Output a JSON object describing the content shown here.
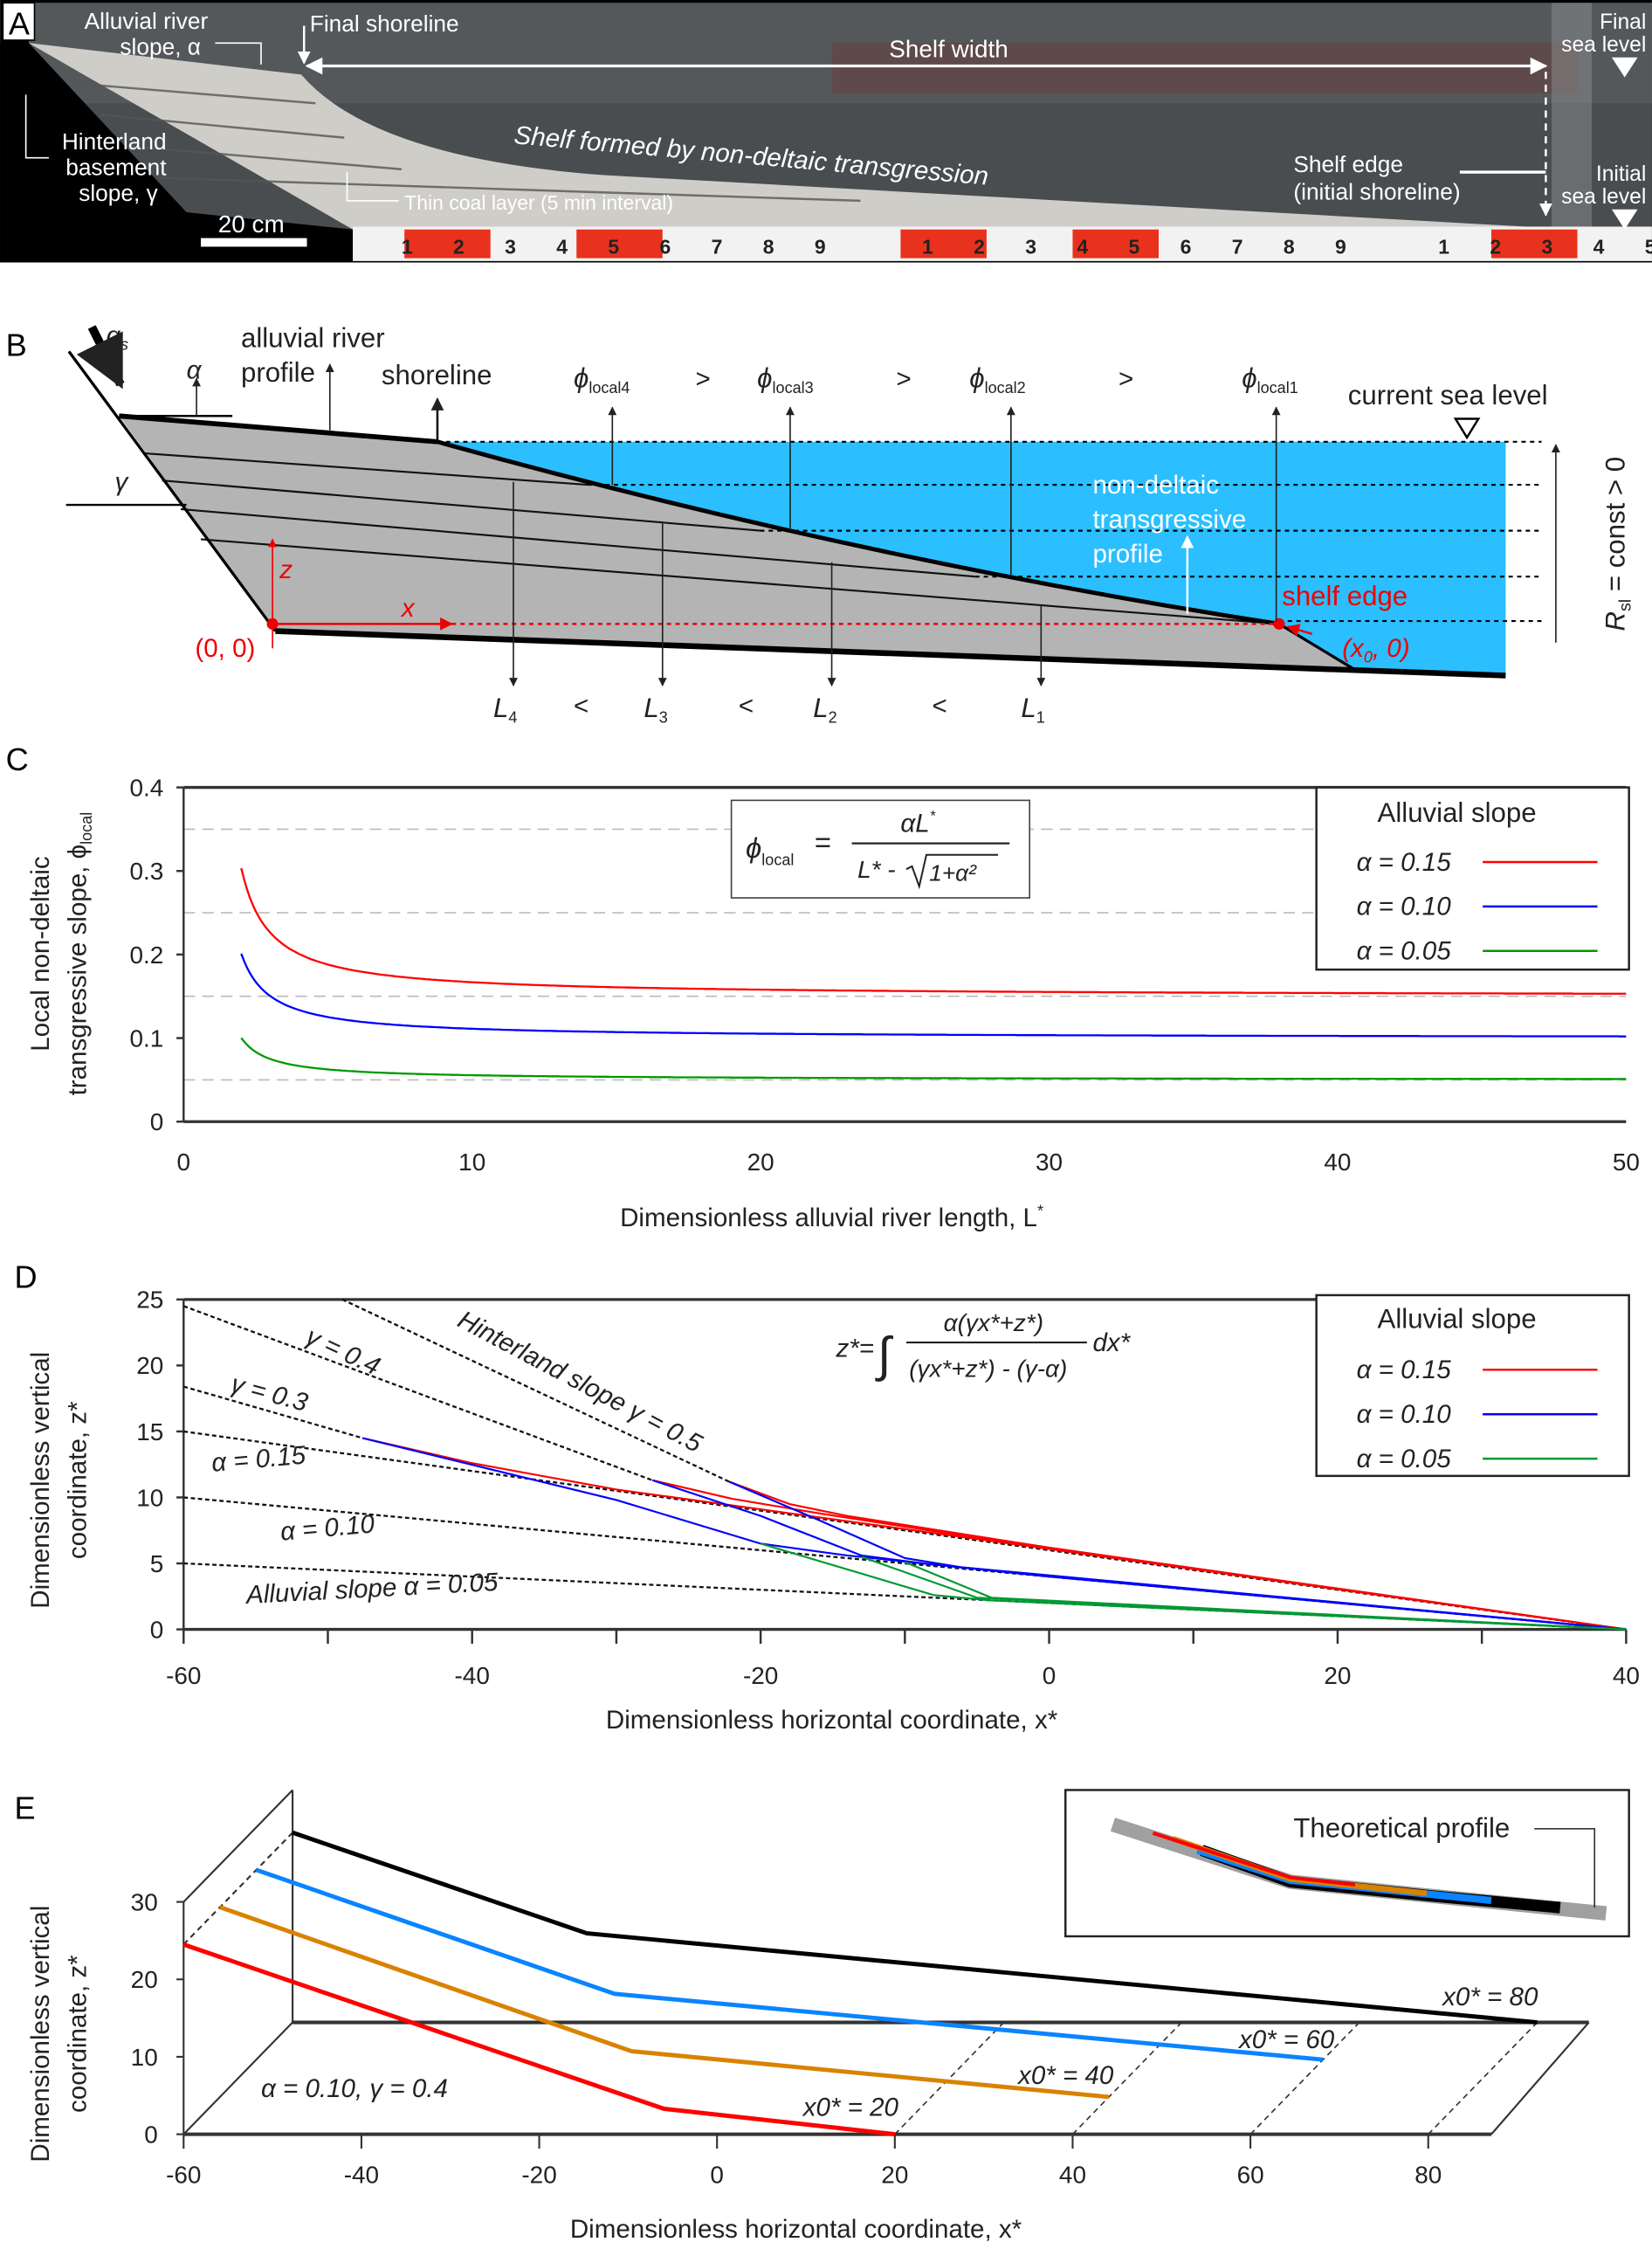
{
  "panels": {
    "A": {
      "label": "A",
      "alluvial_slope": [
        "Alluvial river",
        "slope, α"
      ],
      "final_shoreline": "Final shoreline",
      "shelf_width": "Shelf width",
      "final_sea_level": [
        "Final",
        "sea level"
      ],
      "hinterland": [
        "Hinterland",
        "basement",
        "slope, γ"
      ],
      "shelf_formed": "Shelf formed by non-deltaic transgression",
      "coal_layer": "Thin coal layer (5 min interval)",
      "shelf_edge": [
        "Shelf edge",
        "(initial shoreline)"
      ],
      "initial_sea_level": [
        "Initial",
        "sea level"
      ],
      "scale_bar": "20 cm",
      "ruler_digits": [
        "1",
        "2",
        "3",
        "4",
        "5",
        "6",
        "7",
        "8",
        "9"
      ],
      "colors": {
        "water": "#3c4043",
        "sediment": "#cfcdc8",
        "basement": "#000000",
        "ruler_red": "#e8321e"
      }
    },
    "B": {
      "label": "B",
      "qs": "q",
      "qs_sub": "s",
      "alpha": "α",
      "gamma": "γ",
      "alluvial_profile": [
        "alluvial river",
        "profile"
      ],
      "shoreline": "shoreline",
      "phi": "ϕ",
      "phi_subs": [
        "local4",
        "local3",
        "local2",
        "local1"
      ],
      "gt": ">",
      "current_sea_level": "current sea level",
      "nondeltaic": [
        "non-deltaic",
        "transgressive",
        "profile"
      ],
      "shelf_edge": "shelf edge",
      "origin": "(0, 0)",
      "x0_point": [
        "(x",
        "0",
        ", 0)"
      ],
      "z": "z",
      "x": "x",
      "L": "L",
      "L_subs": [
        "4",
        "3",
        "2",
        "1"
      ],
      "lt": "<",
      "rsl": [
        "R",
        "sl",
        " = const > 0"
      ],
      "colors": {
        "water": "#2bbfff",
        "sediment": "#b4b4b4",
        "annotation": "#ff0000"
      }
    },
    "C": {
      "label": "C"
    },
    "D": {
      "label": "D"
    },
    "E": {
      "label": "E"
    }
  },
  "chart_data": [
    {
      "panel": "C",
      "type": "line",
      "title": "",
      "xlabel": "Dimensionless alluvial river length, L",
      "xlabel_sup": "*",
      "ylabel": [
        "Local non-deltaic",
        "transgressive slope, ϕ"
      ],
      "ylabel_sub": "local",
      "xlim": [
        0,
        50
      ],
      "ylim": [
        0,
        0.4
      ],
      "xticks": [
        "0",
        "10",
        "20",
        "30",
        "40",
        "50"
      ],
      "yticks": [
        "0",
        "0.1",
        "0.2",
        "0.3",
        "0.4"
      ],
      "dashed_gridlines_y": [
        0.05,
        0.15,
        0.25,
        0.35
      ],
      "formula": {
        "lhs": "ϕ",
        "lhs_sub": "local",
        "eq": "=",
        "num": "αL",
        "num_sup": "*",
        "den": "L* - ",
        "den_root": "1+α²"
      },
      "formula_definition": "phi_local = alpha*L / (L - sqrt(1+alpha^2))",
      "legend": {
        "title": "Alluvial slope",
        "placement": "top-right"
      },
      "series": [
        {
          "name": "α = 0.15",
          "alpha": 0.15,
          "color": "#ff0000",
          "L_range": [
            2,
            50
          ]
        },
        {
          "name": "α = 0.10",
          "alpha": 0.1,
          "color": "#0000ff",
          "L_range": [
            2,
            50
          ]
        },
        {
          "name": "α = 0.05",
          "alpha": 0.05,
          "color": "#009900",
          "L_range": [
            2,
            50
          ]
        }
      ]
    },
    {
      "panel": "D",
      "type": "line",
      "title": "",
      "xlabel": "Dimensionless horizontal coordinate, x*",
      "ylabel": [
        "Dimensionless vertical",
        "coordinate, z*"
      ],
      "xlim": [
        -60,
        40
      ],
      "ylim": [
        0,
        25
      ],
      "xticks": [
        "-60",
        "-40",
        "-20",
        "0",
        "20",
        "40"
      ],
      "yticks": [
        "0",
        "5",
        "10",
        "15",
        "20",
        "25"
      ],
      "formula": {
        "lhs": "z*=",
        "num": "α(γx*+z*)",
        "den": "(γx*+z*) - (γ-α)",
        "dx": "dx*"
      },
      "legend": {
        "title": "Alluvial slope",
        "placement": "top-right"
      },
      "reference_lines": [
        {
          "label": "Alluvial slope α = 0.05",
          "points": [
            [
              -60,
              5
            ],
            [
              40,
              0
            ]
          ]
        },
        {
          "label": "α = 0.10",
          "points": [
            [
              -60,
              10
            ],
            [
              40,
              0
            ]
          ]
        },
        {
          "label": "α = 0.15",
          "points": [
            [
              -60,
              15
            ],
            [
              40,
              0
            ]
          ]
        },
        {
          "label": "γ = 0.3",
          "points": [
            [
              -60,
              18.4
            ],
            [
              -47.6,
              14.5
            ]
          ]
        },
        {
          "label": "γ = 0.4",
          "points": [
            [
              -60,
              24.5
            ],
            [
              -27.5,
              11.3
            ]
          ]
        },
        {
          "label": "Hinterland slope γ = 0.5",
          "points": [
            [
              -49,
              25
            ],
            [
              -22.2,
              11.2
            ]
          ]
        }
      ],
      "series": [
        {
          "name": "α = 0.15",
          "color": "#ff0000",
          "curves": [
            [
              [
                -47.6,
                14.5
              ],
              [
                -40,
                12.6
              ],
              [
                -30,
                10.6
              ],
              [
                -20,
                9.1
              ],
              [
                0,
                6.1
              ],
              [
                40,
                0
              ]
            ],
            [
              [
                -27.5,
                11.3
              ],
              [
                -22,
                9.9
              ],
              [
                -16,
                8.8
              ],
              [
                0,
                6.1
              ],
              [
                40,
                0
              ]
            ],
            [
              [
                -22.2,
                11.2
              ],
              [
                -18,
                9.5
              ],
              [
                -14,
                8.6
              ],
              [
                0,
                6.2
              ],
              [
                40,
                0
              ]
            ]
          ]
        },
        {
          "name": "α = 0.10",
          "color": "#0000ff",
          "curves": [
            [
              [
                -47.6,
                14.5
              ],
              [
                -30,
                9.8
              ],
              [
                -20,
                6.5
              ],
              [
                -14,
                5.6
              ],
              [
                0,
                4
              ],
              [
                40,
                0
              ]
            ],
            [
              [
                -27.5,
                11.3
              ],
              [
                -20,
                8.6
              ],
              [
                -13,
                5.6
              ],
              [
                -8,
                4.9
              ],
              [
                0,
                4.05
              ],
              [
                40,
                0
              ]
            ],
            [
              [
                -22.2,
                11.2
              ],
              [
                -16,
                8.3
              ],
              [
                -10,
                5.4
              ],
              [
                -6,
                4.7
              ],
              [
                0,
                4.1
              ],
              [
                40,
                0
              ]
            ]
          ]
        },
        {
          "name": "α = 0.05",
          "color": "#009933",
          "curves": [
            [
              [
                -20,
                6.5
              ],
              [
                -8,
                2.6
              ],
              [
                -4,
                2.2
              ],
              [
                40,
                0
              ]
            ],
            [
              [
                -13,
                5.5
              ],
              [
                -5,
                2.4
              ],
              [
                40,
                0
              ]
            ],
            [
              [
                -10,
                5.1
              ],
              [
                -4,
                2.4
              ],
              [
                40,
                0
              ]
            ]
          ]
        }
      ]
    },
    {
      "panel": "E",
      "type": "line",
      "title": "",
      "xlabel": "Dimensionless horizontal coordinate, x*",
      "ylabel": [
        "Dimensionless vertical",
        "coordinate, z*"
      ],
      "xlim": [
        -60,
        80
      ],
      "ylim": [
        0,
        30
      ],
      "xticks": [
        "-60",
        "-40",
        "-20",
        "0",
        "20",
        "40",
        "60",
        "80"
      ],
      "yticks": [
        "0",
        "10",
        "20",
        "30"
      ],
      "annotation": "α = 0.10, γ = 0.4",
      "view": "pseudo-3D, profiles staggered in depth",
      "inset": {
        "label": "Theoretical profile"
      },
      "series": [
        {
          "name": "x0* = 20",
          "x0": 20,
          "color": "#ff0000",
          "points": [
            [
              -60,
              24.5
            ],
            [
              -6,
              3.3
            ],
            [
              20,
              0
            ]
          ]
        },
        {
          "name": "x0* = 40",
          "x0": 40,
          "color": "#d98200",
          "points": [
            [
              -60,
              24.5
            ],
            [
              -13.7,
              5.9
            ],
            [
              40,
              0
            ]
          ]
        },
        {
          "name": "x0* = 60",
          "x0": 60,
          "color": "#0a84ff",
          "points": [
            [
              -60,
              24.5
            ],
            [
              -19.7,
              8.5
            ],
            [
              60,
              0
            ]
          ]
        },
        {
          "name": "x0* = 80",
          "x0": 80,
          "color": "#000000",
          "points": [
            [
              -60,
              24.5
            ],
            [
              -26.9,
              11.5
            ],
            [
              80,
              0
            ]
          ]
        }
      ]
    }
  ]
}
